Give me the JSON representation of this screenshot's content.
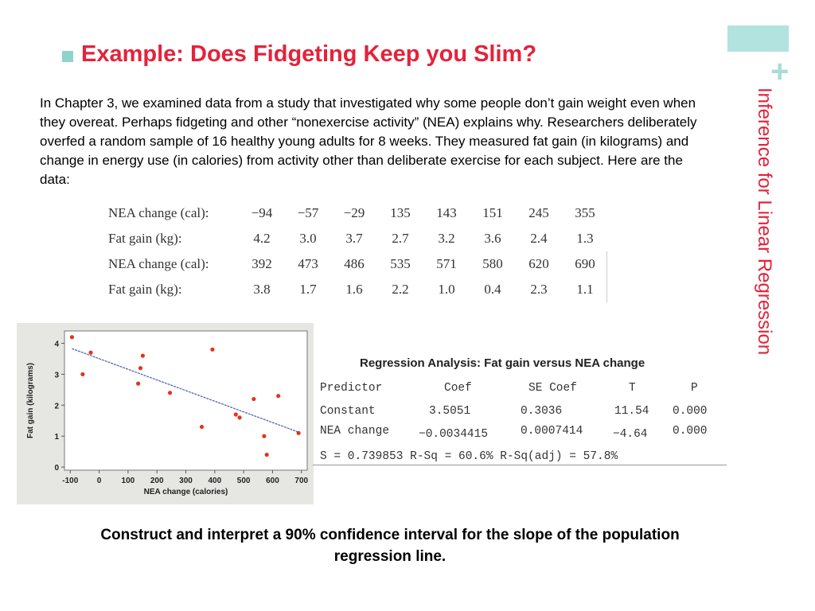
{
  "slide": {
    "title": "Example: Does Fidgeting Keep you Slim?",
    "side_title": "Inference for Linear Regression",
    "plus_glyph": "+",
    "accent_color": "#e4223a",
    "teal_color": "#8ed3cc",
    "intro": "In Chapter 3, we examined data from a study that investigated why some people don’t gain weight even when they overeat. Perhaps fidgeting and other “nonexercise activity” (NEA) explains why. Researchers deliberately overfed a random sample of 16 healthy young adults for 8 weeks. They measured fat gain (in kilograms) and change in energy use (in calories) from activity other than deliberate exercise for each subject. Here are the data:",
    "prompt": "Construct and interpret a 90% confidence interval for the slope of the population regression line."
  },
  "data_table": {
    "rows": [
      {
        "label": "NEA change (cal):",
        "values": [
          "−94",
          "−57",
          "−29",
          "135",
          "143",
          "151",
          "245",
          "355"
        ]
      },
      {
        "label": "Fat gain (kg):",
        "values": [
          "4.2",
          "3.0",
          "3.7",
          "2.7",
          "3.2",
          "3.6",
          "2.4",
          "1.3"
        ]
      },
      {
        "label": "NEA change (cal):",
        "values": [
          "392",
          "473",
          "486",
          "535",
          "571",
          "580",
          "620",
          "690"
        ]
      },
      {
        "label": "Fat gain (kg):",
        "values": [
          "3.8",
          "1.7",
          "1.6",
          "2.2",
          "1.0",
          "0.4",
          "2.3",
          "1.1"
        ]
      }
    ]
  },
  "regression": {
    "title": "Regression Analysis: Fat gain versus NEA change",
    "headers": [
      "Predictor",
      "Coef",
      "SE Coef",
      "T",
      "P"
    ],
    "rows": [
      [
        "Constant",
        "3.5051",
        "0.3036",
        "11.54",
        "0.000"
      ],
      [
        "NEA change",
        "−0.0034415",
        "0.0007414",
        "−4.64",
        "0.000"
      ]
    ],
    "summary": "S = 0.739853 R-Sq = 60.6% R-Sq(adj) = 57.8%"
  },
  "chart_data": {
    "type": "scatter",
    "xlabel": "NEA change (calories)",
    "ylabel": "Fat gain (kilograms)",
    "xlim": [
      -120,
      720
    ],
    "ylim": [
      -0.1,
      4.4
    ],
    "xticks": [
      "-100",
      "0",
      "100",
      "200",
      "300",
      "400",
      "500",
      "600",
      "700"
    ],
    "yticks": [
      "0",
      "1",
      "2",
      "3",
      "4"
    ],
    "x": [
      -94,
      -57,
      -29,
      135,
      143,
      151,
      245,
      355,
      392,
      473,
      486,
      535,
      571,
      580,
      620,
      690
    ],
    "y": [
      4.2,
      3.0,
      3.7,
      2.7,
      3.2,
      3.6,
      2.4,
      1.3,
      3.8,
      1.7,
      1.6,
      2.2,
      1.0,
      0.4,
      2.3,
      1.1
    ],
    "fit_line": {
      "intercept": 3.5051,
      "slope": -0.0034415,
      "x_range": [
        -94,
        690
      ]
    },
    "point_color": "#e4331c",
    "line_color": "#5566b8",
    "grid": false
  }
}
